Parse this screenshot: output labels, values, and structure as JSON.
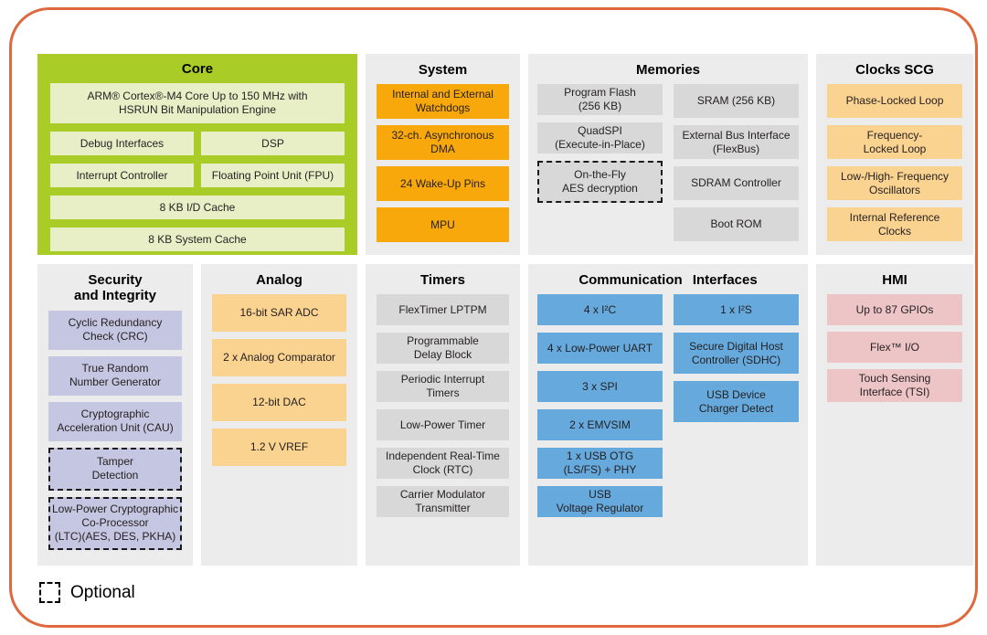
{
  "colors": {
    "frame_border": "#e0683f",
    "core_bg": "#a9cc27",
    "core_block": "#e8efc6",
    "panel_bg": "#ececec",
    "orange": "#f9a80b",
    "amber": "#fbd391",
    "gray": "#d8d8d8",
    "lavender": "#c5c6e1",
    "blue": "#66a9dc",
    "pink": "#eec5c7",
    "text": "#231f20"
  },
  "panels": {
    "core": {
      "title": "Core",
      "blocks": [
        "ARM® Cortex®-M4 Core Up to 150 MHz with\nHSRUN Bit Manipulation Engine",
        "Debug Interfaces",
        "DSP",
        "Interrupt Controller",
        "Floating Point Unit (FPU)",
        "8 KB I/D Cache",
        "8 KB System Cache"
      ]
    },
    "system": {
      "title": "System",
      "blocks": [
        "Internal and External\nWatchdogs",
        "32-ch. Asynchronous\nDMA",
        "24 Wake-Up Pins",
        "MPU"
      ]
    },
    "memories": {
      "title": "Memories",
      "left": [
        "Program Flash\n(256 KB)",
        "QuadSPI\n(Execute-in-Place)",
        "On-the-Fly\nAES decryption"
      ],
      "right": [
        "SRAM (256 KB)",
        "External Bus Interface\n(FlexBus)",
        "SDRAM Controller",
        "Boot ROM"
      ]
    },
    "clocks": {
      "title": "Clocks SCG",
      "blocks": [
        "Phase-Locked Loop",
        "Frequency-\nLocked Loop",
        "Low-/High- Frequency\nOscillators",
        "Internal Reference\nClocks"
      ]
    },
    "security": {
      "title": "Security\nand Integrity",
      "blocks": [
        "Cyclic Redundancy\nCheck (CRC)",
        "True Random\nNumber Generator",
        "Cryptographic\nAcceleration Unit (CAU)",
        "Tamper\nDetection",
        "Low-Power Cryptographic\nCo-Processor\n(LTC)(AES, DES, PKHA)"
      ]
    },
    "analog": {
      "title": "Analog",
      "blocks": [
        "16-bit SAR ADC",
        "2 x Analog Comparator",
        "12-bit DAC",
        "1.2 V VREF"
      ]
    },
    "timers": {
      "title": "Timers",
      "blocks": [
        "FlexTimer LPTPM",
        "Programmable\nDelay Block",
        "Periodic Interrupt\nTimers",
        "Low-Power Timer",
        "Independent Real-Time\nClock (RTC)",
        "Carrier Modulator\nTransmitter"
      ]
    },
    "comm": {
      "title": "Communication Interfaces",
      "left": [
        "4 x I²C",
        "4 x Low-Power UART",
        "3 x SPI",
        "2 x EMVSIM",
        "1 x USB OTG\n(LS/FS) + PHY",
        "USB\nVoltage Regulator"
      ],
      "right": [
        "1 x I²S",
        "Secure Digital Host\nController (SDHC)",
        "USB Device\nCharger Detect"
      ]
    },
    "hmi": {
      "title": "HMI",
      "blocks": [
        "Up to 87 GPIOs",
        "Flex™ I/O",
        "Touch Sensing\nInterface (TSI)"
      ]
    }
  },
  "legend": {
    "label": "Optional"
  }
}
